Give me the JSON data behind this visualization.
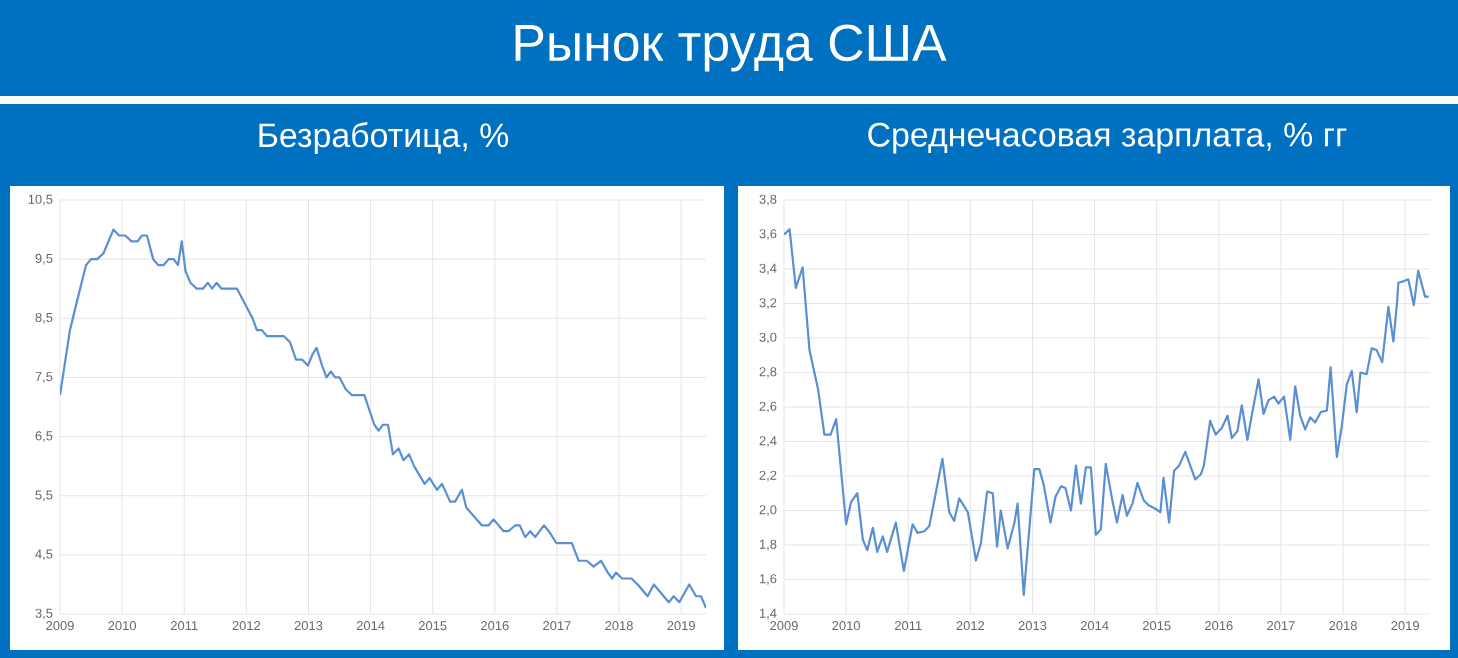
{
  "chart_data": [
    {
      "type": "other",
      "title": "Рынок труда США"
    },
    {
      "type": "line",
      "title": "Безработица, %",
      "color": "#5b8fd3",
      "grid": true,
      "xlim": [
        2009,
        2019.4
      ],
      "xticks": [
        2009,
        2010,
        2011,
        2012,
        2013,
        2014,
        2015,
        2016,
        2017,
        2018,
        2019
      ],
      "ylim": [
        3.5,
        10.5
      ],
      "yticks": [
        {
          "value": 3.5,
          "label": "3,5"
        },
        {
          "value": 4.5,
          "label": "4,5"
        },
        {
          "value": 5.5,
          "label": "5,5"
        },
        {
          "value": 6.5,
          "label": "6,5"
        },
        {
          "value": 7.5,
          "label": "7,5"
        },
        {
          "value": 8.5,
          "label": "8,5"
        },
        {
          "value": 9.5,
          "label": "9,5"
        },
        {
          "value": 10.5,
          "label": "10,5"
        }
      ],
      "x": [
        2009.0,
        2009.16,
        2009.3,
        2009.42,
        2009.5,
        2009.6,
        2009.7,
        2009.86,
        2009.95,
        2010.05,
        2010.15,
        2010.25,
        2010.32,
        2010.4,
        2010.5,
        2010.58,
        2010.67,
        2010.75,
        2010.83,
        2010.9,
        2010.96,
        2011.02,
        2011.1,
        2011.2,
        2011.3,
        2011.38,
        2011.45,
        2011.52,
        2011.6,
        2011.85,
        2012.0,
        2012.1,
        2012.17,
        2012.25,
        2012.33,
        2012.6,
        2012.7,
        2012.8,
        2012.9,
        2012.99,
        2013.07,
        2013.13,
        2013.22,
        2013.29,
        2013.36,
        2013.43,
        2013.5,
        2013.6,
        2013.7,
        2013.9,
        2014.06,
        2014.13,
        2014.2,
        2014.28,
        2014.36,
        2014.45,
        2014.53,
        2014.62,
        2014.7,
        2014.87,
        2014.95,
        2015.07,
        2015.15,
        2015.28,
        2015.36,
        2015.47,
        2015.54,
        2015.79,
        2015.9,
        2015.98,
        2016.14,
        2016.22,
        2016.33,
        2016.4,
        2016.49,
        2016.57,
        2016.65,
        2016.79,
        2016.87,
        2016.99,
        2017.24,
        2017.35,
        2017.48,
        2017.59,
        2017.71,
        2017.82,
        2017.89,
        2017.95,
        2018.05,
        2018.2,
        2018.3,
        2018.46,
        2018.56,
        2018.8,
        2018.88,
        2018.97,
        2019.13,
        2019.24,
        2019.32,
        2019.4
      ],
      "values": [
        7.2,
        8.3,
        8.9,
        9.4,
        9.5,
        9.5,
        9.6,
        10.0,
        9.9,
        9.9,
        9.8,
        9.8,
        9.9,
        9.9,
        9.5,
        9.4,
        9.4,
        9.5,
        9.5,
        9.4,
        9.8,
        9.3,
        9.1,
        9.0,
        9.0,
        9.1,
        9.0,
        9.1,
        9.0,
        9.0,
        8.7,
        8.5,
        8.3,
        8.3,
        8.2,
        8.2,
        8.1,
        7.8,
        7.8,
        7.7,
        7.9,
        8.0,
        7.7,
        7.5,
        7.6,
        7.5,
        7.5,
        7.3,
        7.2,
        7.2,
        6.7,
        6.6,
        6.7,
        6.7,
        6.2,
        6.3,
        6.1,
        6.2,
        6.0,
        5.7,
        5.8,
        5.6,
        5.7,
        5.4,
        5.4,
        5.6,
        5.3,
        5.0,
        5.0,
        5.1,
        4.9,
        4.9,
        5.0,
        5.0,
        4.8,
        4.9,
        4.8,
        5.0,
        4.9,
        4.7,
        4.7,
        4.4,
        4.4,
        4.3,
        4.4,
        4.2,
        4.1,
        4.2,
        4.1,
        4.1,
        4.0,
        3.8,
        4.0,
        3.7,
        3.8,
        3.7,
        4.0,
        3.8,
        3.8,
        3.6
      ]
    },
    {
      "type": "line",
      "title": "Среднечасовая зарплата, % гг",
      "color": "#5b8fd3",
      "grid": true,
      "xlim": [
        2009,
        2019.4
      ],
      "xticks": [
        2009,
        2010,
        2011,
        2012,
        2013,
        2014,
        2015,
        2016,
        2017,
        2018,
        2019
      ],
      "ylim": [
        1.4,
        3.8
      ],
      "yticks": [
        {
          "value": 1.4,
          "label": "1,4"
        },
        {
          "value": 1.6,
          "label": "1,6"
        },
        {
          "value": 1.8,
          "label": "1,8"
        },
        {
          "value": 2.0,
          "label": "2,0"
        },
        {
          "value": 2.2,
          "label": "2,2"
        },
        {
          "value": 2.4,
          "label": "2,4"
        },
        {
          "value": 2.6,
          "label": "2,6"
        },
        {
          "value": 2.8,
          "label": "2,8"
        },
        {
          "value": 3.0,
          "label": "3,0"
        },
        {
          "value": 3.2,
          "label": "3,2"
        },
        {
          "value": 3.4,
          "label": "3,4"
        },
        {
          "value": 3.6,
          "label": "3,6"
        },
        {
          "value": 3.8,
          "label": "3,8"
        }
      ],
      "x": [
        2009.0,
        2009.09,
        2009.19,
        2009.3,
        2009.41,
        2009.55,
        2009.65,
        2009.75,
        2009.84,
        2010.0,
        2010.08,
        2010.18,
        2010.27,
        2010.34,
        2010.43,
        2010.5,
        2010.59,
        2010.66,
        2010.8,
        2010.93,
        2011.07,
        2011.15,
        2011.26,
        2011.34,
        2011.55,
        2011.66,
        2011.74,
        2011.82,
        2011.96,
        2012.09,
        2012.17,
        2012.27,
        2012.36,
        2012.43,
        2012.49,
        2012.6,
        2012.71,
        2012.76,
        2012.86,
        2013.03,
        2013.11,
        2013.18,
        2013.29,
        2013.37,
        2013.46,
        2013.53,
        2013.62,
        2013.7,
        2013.78,
        2013.86,
        2013.94,
        2014.02,
        2014.1,
        2014.18,
        2014.28,
        2014.36,
        2014.45,
        2014.52,
        2014.61,
        2014.69,
        2014.79,
        2014.87,
        2014.98,
        2015.06,
        2015.11,
        2015.2,
        2015.28,
        2015.36,
        2015.46,
        2015.62,
        2015.71,
        2015.76,
        2015.86,
        2015.95,
        2016.05,
        2016.14,
        2016.21,
        2016.3,
        2016.37,
        2016.46,
        2016.54,
        2016.64,
        2016.72,
        2016.8,
        2016.89,
        2016.96,
        2017.05,
        2017.15,
        2017.23,
        2017.31,
        2017.39,
        2017.47,
        2017.55,
        2017.64,
        2017.74,
        2017.8,
        2017.9,
        2017.98,
        2018.06,
        2018.14,
        2018.22,
        2018.28,
        2018.38,
        2018.46,
        2018.54,
        2018.63,
        2018.73,
        2018.81,
        2018.87,
        2018.89,
        2018.98,
        2019.05,
        2019.14,
        2019.21,
        2019.32,
        2019.38
      ],
      "values": [
        3.6,
        3.63,
        3.29,
        3.41,
        2.93,
        2.7,
        2.44,
        2.44,
        2.53,
        1.92,
        2.05,
        2.1,
        1.83,
        1.77,
        1.9,
        1.76,
        1.85,
        1.76,
        1.93,
        1.65,
        1.92,
        1.87,
        1.88,
        1.91,
        2.3,
        1.99,
        1.94,
        2.07,
        1.99,
        1.71,
        1.81,
        2.11,
        2.1,
        1.79,
        2.0,
        1.78,
        1.93,
        2.04,
        1.51,
        2.24,
        2.24,
        2.15,
        1.93,
        2.08,
        2.14,
        2.13,
        2.0,
        2.26,
        2.04,
        2.25,
        2.25,
        1.86,
        1.89,
        2.27,
        2.07,
        1.93,
        2.09,
        1.97,
        2.04,
        2.16,
        2.06,
        2.03,
        2.01,
        1.99,
        2.19,
        1.93,
        2.23,
        2.26,
        2.34,
        2.18,
        2.21,
        2.26,
        2.52,
        2.44,
        2.48,
        2.55,
        2.42,
        2.46,
        2.61,
        2.41,
        2.57,
        2.76,
        2.56,
        2.64,
        2.66,
        2.62,
        2.66,
        2.41,
        2.72,
        2.55,
        2.47,
        2.54,
        2.51,
        2.57,
        2.58,
        2.83,
        2.31,
        2.49,
        2.73,
        2.81,
        2.57,
        2.8,
        2.79,
        2.94,
        2.93,
        2.86,
        3.18,
        2.98,
        3.21,
        3.32,
        3.33,
        3.34,
        3.19,
        3.39,
        3.24,
        3.24
      ]
    }
  ]
}
